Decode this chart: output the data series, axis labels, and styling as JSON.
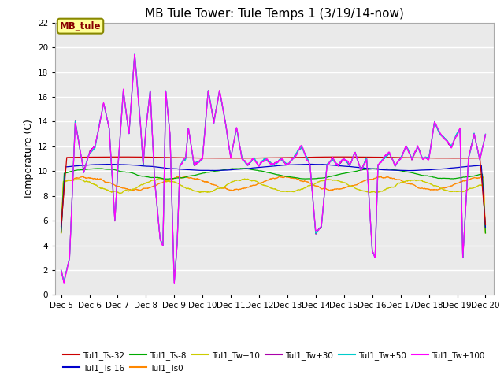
{
  "title": "MB Tule Tower: Tule Temps 1 (3/19/14-now)",
  "ylabel": "Temperature (C)",
  "xlim_days": [
    4.8,
    20.3
  ],
  "ylim": [
    0,
    22
  ],
  "yticks": [
    0,
    2,
    4,
    6,
    8,
    10,
    12,
    14,
    16,
    18,
    20,
    22
  ],
  "xtick_labels": [
    "Dec 5",
    "Dec 6",
    "Dec 7",
    "Dec 8",
    "Dec 9",
    "Dec 10",
    "Dec 11",
    "Dec 12",
    "Dec 13",
    "Dec 14",
    "Dec 15",
    "Dec 16",
    "Dec 17",
    "Dec 18",
    "Dec 19",
    "Dec 20"
  ],
  "xtick_positions": [
    5,
    6,
    7,
    8,
    9,
    10,
    11,
    12,
    13,
    14,
    15,
    16,
    17,
    18,
    19,
    20
  ],
  "fig_bg": "#ffffff",
  "plot_bg": "#eaeaea",
  "grid_color": "#ffffff",
  "colors": {
    "Tul1_Ts-32": "#cc0000",
    "Tul1_Ts-16": "#0000cc",
    "Tul1_Ts-8": "#00aa00",
    "Tul1_Ts0": "#ff8800",
    "Tul1_Tw+10": "#cccc00",
    "Tul1_Tw+30": "#aa00aa",
    "Tul1_Tw+50": "#00cccc",
    "Tul1_Tw+100": "#ff00ff"
  },
  "legend_label": "MB_tule",
  "legend_bg": "#ffff99",
  "legend_border": "#888800",
  "title_fontsize": 11,
  "tick_fontsize": 7.5,
  "ylabel_fontsize": 9,
  "legend_fontsize": 7.5
}
